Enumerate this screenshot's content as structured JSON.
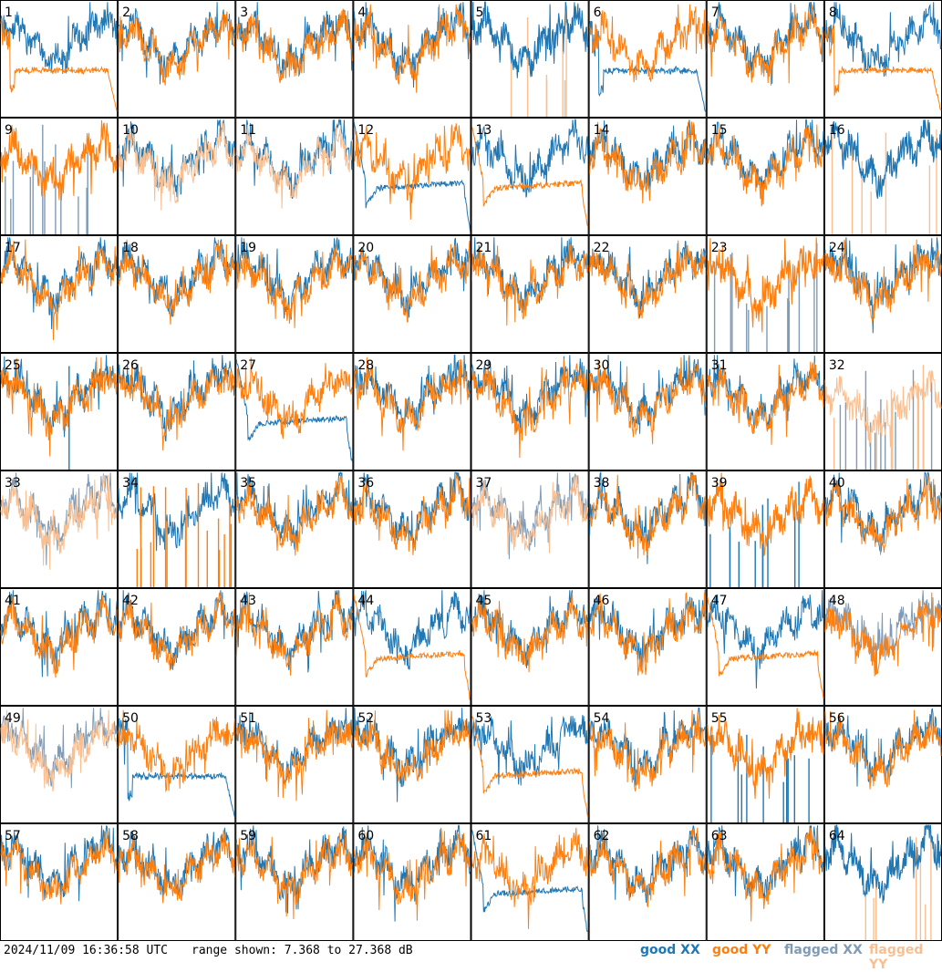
{
  "chart_data": {
    "type": "line",
    "grid_rows": 8,
    "grid_cols": 8,
    "panel_labels": [
      "1",
      "2",
      "3",
      "4",
      "5",
      "6",
      "7",
      "8",
      "9",
      "10",
      "11",
      "12",
      "13",
      "14",
      "15",
      "16",
      "17",
      "18",
      "19",
      "20",
      "21",
      "22",
      "23",
      "24",
      "25",
      "26",
      "27",
      "28",
      "29",
      "30",
      "31",
      "32",
      "33",
      "34",
      "35",
      "36",
      "37",
      "38",
      "39",
      "40",
      "41",
      "42",
      "43",
      "44",
      "45",
      "46",
      "47",
      "48",
      "49",
      "50",
      "51",
      "52",
      "53",
      "54",
      "55",
      "56",
      "57",
      "58",
      "59",
      "60",
      "61",
      "62",
      "63",
      "64"
    ],
    "ylim": [
      7.368,
      27.368
    ],
    "legend_placement": "bottom-right",
    "series": [
      {
        "name": "good XX",
        "color": "#1f77b4"
      },
      {
        "name": "good YY",
        "color": "#ff7f0e"
      },
      {
        "name": "flagged XX",
        "color": "#7f9bb6"
      },
      {
        "name": "flagged YY",
        "color": "#fbbf8f"
      }
    ],
    "panels": {
      "default": {
        "xx": "good",
        "yy": "good"
      },
      "special": {
        "1": {
          "xx": "good",
          "yy": "good",
          "note": "yy-drop"
        },
        "5": {
          "xx": "good",
          "yy": "flagged",
          "note": "spikes"
        },
        "6": {
          "xx": "good",
          "yy": "good",
          "note": "xx-drop"
        },
        "8": {
          "xx": "good",
          "yy": "good",
          "note": "yy-drop"
        },
        "9": {
          "xx": "flagged",
          "yy": "good",
          "note": "spikes"
        },
        "10": {
          "xx": "good",
          "yy": "flagged"
        },
        "11": {
          "xx": "good",
          "yy": "flagged"
        },
        "12": {
          "xx": "good",
          "yy": "good",
          "note": "xx-plateau"
        },
        "13": {
          "xx": "good",
          "yy": "good",
          "note": "yy-plateau"
        },
        "16": {
          "xx": "good",
          "yy": "flagged",
          "note": "spikes"
        },
        "23": {
          "xx": "flagged",
          "yy": "good",
          "note": "spikes"
        },
        "25": {
          "xx": "good",
          "yy": "good",
          "note": "xx-single-spike"
        },
        "27": {
          "xx": "good",
          "yy": "good",
          "note": "xx-plateau"
        },
        "32": {
          "xx": "flagged",
          "yy": "flagged",
          "note": "spikes"
        },
        "33": {
          "xx": "flagged",
          "yy": "flagged"
        },
        "34": {
          "xx": "good",
          "yy": "good",
          "note": "yy-spikes"
        },
        "37": {
          "xx": "flagged",
          "yy": "flagged"
        },
        "39": {
          "xx": "good",
          "yy": "good",
          "note": "xx-spikes"
        },
        "44": {
          "xx": "good",
          "yy": "good",
          "note": "yy-plateau"
        },
        "47": {
          "xx": "good",
          "yy": "good",
          "note": "yy-plateau"
        },
        "48": {
          "xx": "flagged",
          "yy": "good"
        },
        "49": {
          "xx": "flagged",
          "yy": "flagged"
        },
        "50": {
          "xx": "good",
          "yy": "good",
          "note": "xx-drop"
        },
        "53": {
          "xx": "good",
          "yy": "good",
          "note": "yy-plateau"
        },
        "55": {
          "xx": "good",
          "yy": "good",
          "note": "xx-spikes"
        },
        "61": {
          "xx": "good",
          "yy": "good",
          "note": "xx-plateau"
        },
        "64": {
          "xx": "good",
          "yy": "flagged",
          "note": "spikes"
        }
      }
    }
  },
  "footer": {
    "timestamp": "2024/11/09 16:36:58 UTC",
    "range_text": "range shown: 7.368 to 27.368 dB",
    "legend": [
      "good XX",
      "good YY",
      "flagged XX",
      "flagged YY"
    ]
  }
}
